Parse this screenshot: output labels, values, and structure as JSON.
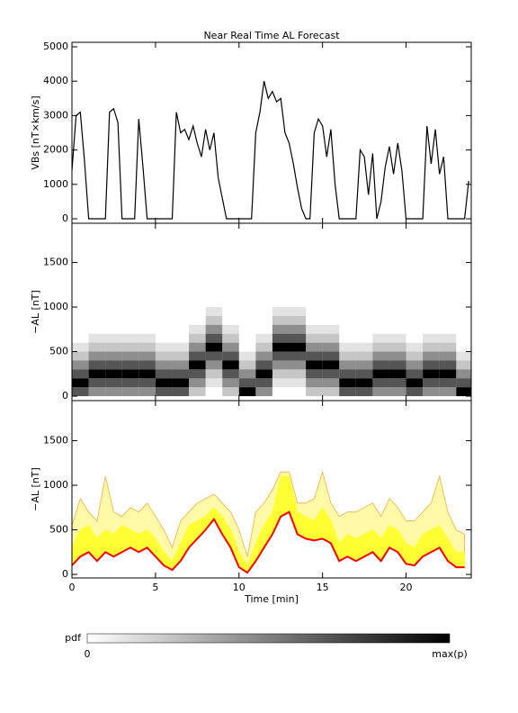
{
  "chart_data": [
    {
      "type": "line",
      "title": "Near Real Time AL Forecast",
      "ylabel": "VBs [nT×km/s]",
      "color": "#000000",
      "x": [
        0,
        0.25,
        0.5,
        0.75,
        1,
        1.25,
        1.5,
        1.75,
        2,
        2.25,
        2.5,
        2.75,
        3,
        3.25,
        3.5,
        3.75,
        4,
        4.25,
        4.5,
        4.75,
        5,
        5.25,
        5.5,
        5.75,
        6,
        6.25,
        6.5,
        6.75,
        7,
        7.25,
        7.5,
        7.75,
        8,
        8.25,
        8.5,
        8.75,
        9,
        9.25,
        9.5,
        9.75,
        10,
        10.25,
        10.5,
        10.75,
        11,
        11.25,
        11.5,
        11.75,
        12,
        12.25,
        12.5,
        12.75,
        13,
        13.25,
        13.5,
        13.75,
        14,
        14.25,
        14.5,
        14.75,
        15,
        15.25,
        15.5,
        15.75,
        16,
        16.25,
        16.5,
        16.75,
        17,
        17.25,
        17.5,
        17.75,
        18,
        18.25,
        18.5,
        18.75,
        19,
        19.25,
        19.5,
        19.75,
        20,
        20.25,
        20.5,
        20.75,
        21,
        21.25,
        21.5,
        21.75,
        22,
        22.25,
        22.5,
        22.75,
        23,
        23.25,
        23.5,
        23.75
      ],
      "values": [
        1400,
        3000,
        3100,
        1700,
        0,
        0,
        0,
        0,
        0,
        3100,
        3200,
        2800,
        0,
        0,
        0,
        0,
        2900,
        1500,
        0,
        0,
        0,
        0,
        0,
        0,
        0,
        3100,
        2500,
        2600,
        2300,
        2700,
        2200,
        1800,
        2600,
        2000,
        2500,
        1200,
        600,
        0,
        0,
        0,
        0,
        0,
        0,
        0,
        2500,
        3100,
        4000,
        3500,
        3700,
        3400,
        3500,
        2500,
        2200,
        1600,
        900,
        300,
        0,
        0,
        2500,
        2900,
        2700,
        1800,
        2600,
        1000,
        0,
        0,
        0,
        0,
        0,
        2000,
        1800,
        700,
        1900,
        0,
        500,
        1500,
        2100,
        1300,
        2200,
        1400,
        0,
        0,
        0,
        0,
        0,
        2700,
        1600,
        2600,
        1300,
        1800,
        0,
        0,
        0,
        0,
        0,
        1100
      ],
      "xlim": [
        0,
        23.9
      ],
      "xticks": [
        0,
        5,
        10,
        15,
        20
      ],
      "ylim": [
        -130,
        5130
      ],
      "yticks": [
        0,
        1000,
        2000,
        3000,
        4000,
        5000
      ]
    },
    {
      "type": "heatmap",
      "ylabel": "−AL [nT]",
      "color": "#000000",
      "x_bins": [
        0,
        1,
        2,
        3,
        4,
        5,
        6,
        7,
        8,
        9,
        10,
        11,
        12,
        13,
        14,
        15,
        16,
        17,
        18,
        19,
        20,
        21,
        22,
        23,
        24
      ],
      "y_bins": [
        0,
        100,
        200,
        300,
        400,
        500,
        600,
        700,
        800,
        900,
        1000
      ],
      "z": [
        [
          6,
          9,
          6,
          4,
          2,
          1,
          0,
          0,
          0,
          0
        ],
        [
          4,
          6,
          9,
          6,
          4,
          2,
          1,
          0,
          0,
          0
        ],
        [
          4,
          6,
          9,
          6,
          4,
          2,
          1,
          0,
          0,
          0
        ],
        [
          4,
          6,
          9,
          6,
          4,
          2,
          1,
          0,
          0,
          0
        ],
        [
          4,
          6,
          9,
          6,
          4,
          2,
          1,
          0,
          0,
          0
        ],
        [
          6,
          9,
          6,
          4,
          2,
          1,
          0,
          0,
          0,
          0
        ],
        [
          6,
          9,
          6,
          4,
          2,
          1,
          0,
          0,
          0,
          0
        ],
        [
          2,
          4,
          6,
          9,
          6,
          4,
          2,
          1,
          0,
          0
        ],
        [
          0,
          1,
          2,
          4,
          6,
          9,
          6,
          4,
          2,
          1
        ],
        [
          2,
          4,
          6,
          9,
          6,
          4,
          2,
          1,
          0,
          0
        ],
        [
          9,
          6,
          4,
          2,
          1,
          0,
          0,
          0,
          0,
          0
        ],
        [
          4,
          6,
          9,
          6,
          4,
          2,
          1,
          0,
          0,
          0
        ],
        [
          0,
          1,
          2,
          4,
          6,
          9,
          6,
          4,
          2,
          1
        ],
        [
          0,
          1,
          2,
          4,
          6,
          9,
          6,
          4,
          2,
          1
        ],
        [
          2,
          4,
          6,
          9,
          6,
          4,
          2,
          1,
          0,
          0
        ],
        [
          2,
          4,
          6,
          9,
          6,
          4,
          2,
          1,
          0,
          0
        ],
        [
          6,
          9,
          6,
          4,
          2,
          1,
          0,
          0,
          0,
          0
        ],
        [
          6,
          9,
          6,
          4,
          2,
          1,
          0,
          0,
          0,
          0
        ],
        [
          4,
          6,
          9,
          6,
          4,
          2,
          1,
          0,
          0,
          0
        ],
        [
          4,
          6,
          9,
          6,
          4,
          2,
          1,
          0,
          0,
          0
        ],
        [
          6,
          9,
          6,
          4,
          2,
          1,
          0,
          0,
          0,
          0
        ],
        [
          4,
          6,
          9,
          6,
          4,
          2,
          1,
          0,
          0,
          0
        ],
        [
          4,
          6,
          9,
          6,
          4,
          2,
          1,
          0,
          0,
          0
        ],
        [
          9,
          6,
          4,
          2,
          1,
          0,
          0,
          0,
          0,
          0
        ]
      ],
      "zlim": [
        0,
        9
      ],
      "xlim": [
        0,
        23.9
      ],
      "xticks": [
        0,
        5,
        10,
        15,
        20
      ],
      "ylim": [
        -50,
        1940
      ],
      "yticks": [
        0,
        500,
        1000,
        1500
      ]
    },
    {
      "type": "band",
      "ylabel": "−AL [nT]",
      "xlabel": "Time [min]",
      "x": [
        0,
        0.5,
        1,
        1.5,
        2,
        2.5,
        3,
        3.5,
        4,
        4.5,
        5,
        5.5,
        6,
        6.5,
        7,
        7.5,
        8,
        8.5,
        9,
        9.5,
        10,
        10.5,
        11,
        11.5,
        12,
        12.5,
        13,
        13.5,
        14,
        14.5,
        15,
        15.5,
        16,
        16.5,
        17,
        17.5,
        18,
        18.5,
        19,
        19.5,
        20,
        20.5,
        21,
        21.5,
        22,
        22.5,
        23,
        23.5
      ],
      "series": [
        {
          "color": "#fff9a8",
          "edge_color": "#f5b041",
          "values": [
            550,
            850,
            700,
            600,
            1100,
            700,
            650,
            750,
            700,
            800,
            650,
            500,
            300,
            600,
            700,
            800,
            850,
            900,
            800,
            700,
            500,
            200,
            700,
            800,
            950,
            1150,
            1150,
            800,
            800,
            850,
            1150,
            800,
            650,
            700,
            700,
            750,
            800,
            650,
            850,
            750,
            600,
            600,
            700,
            800,
            1100,
            700,
            500,
            450
          ]
        },
        {
          "color": "#ffff33",
          "edge_color": "#ffff33",
          "values": [
            300,
            500,
            550,
            400,
            500,
            450,
            550,
            500,
            450,
            500,
            400,
            250,
            150,
            350,
            550,
            600,
            650,
            750,
            650,
            500,
            250,
            100,
            350,
            550,
            700,
            1100,
            1100,
            700,
            650,
            600,
            750,
            600,
            350,
            450,
            400,
            450,
            500,
            400,
            550,
            500,
            350,
            300,
            450,
            500,
            550,
            400,
            250,
            250
          ]
        },
        {
          "color": "#ff0000",
          "values": [
            100,
            200,
            250,
            150,
            250,
            200,
            250,
            300,
            250,
            300,
            200,
            100,
            50,
            150,
            300,
            400,
            500,
            620,
            450,
            300,
            80,
            20,
            150,
            300,
            450,
            650,
            700,
            450,
            400,
            380,
            400,
            350,
            150,
            200,
            150,
            200,
            250,
            150,
            300,
            250,
            120,
            100,
            200,
            250,
            300,
            150,
            80,
            80
          ]
        }
      ],
      "xlim": [
        0,
        23.9
      ],
      "xticks": [
        0,
        5,
        10,
        15,
        20
      ],
      "ylim": [
        -40,
        1950
      ],
      "yticks": [
        0,
        500,
        1000,
        1500
      ]
    }
  ],
  "colorbar": {
    "label": "pdf",
    "min_label": "0",
    "max_label": "max(p)"
  }
}
